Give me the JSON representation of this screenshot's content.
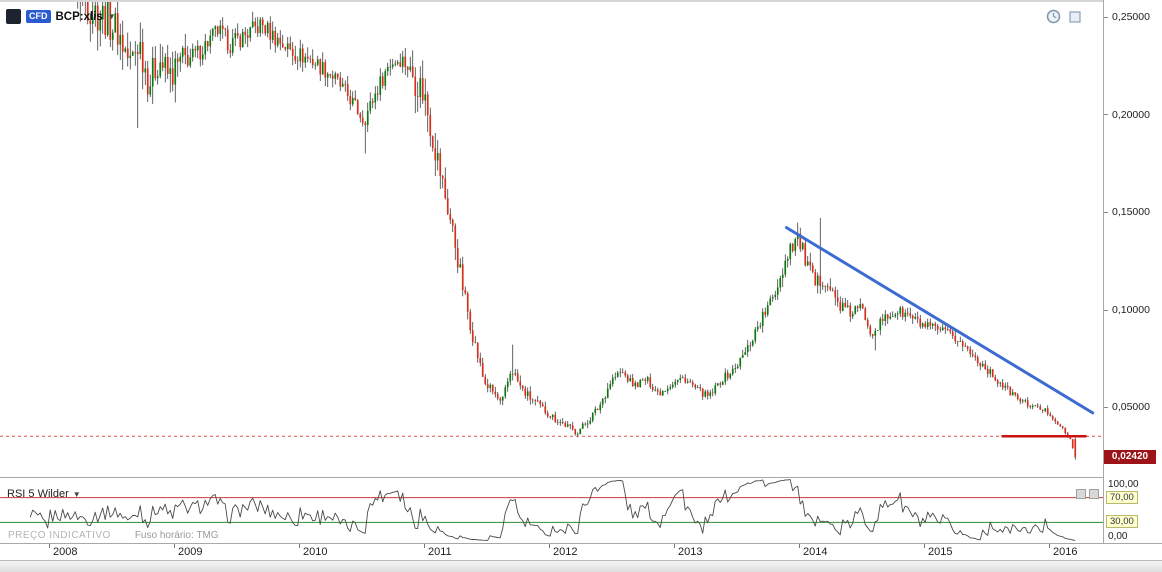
{
  "header": {
    "instrument_badge": "CFD",
    "symbol": "BCP:xlis",
    "dropdown_glyph": "▼"
  },
  "price_axis": {
    "labels": [
      "0,25000",
      "0,20000",
      "0,15000",
      "0,10000",
      "0,05000"
    ],
    "current_price_label": "0,02420"
  },
  "rsi_panel": {
    "label": "RSI 5 Wilder",
    "dropdown_glyph": "▼",
    "levels": [
      "100,00",
      "70,00",
      "30,00",
      "0,00"
    ]
  },
  "x_axis": {
    "years": [
      "2008",
      "2009",
      "2010",
      "2011",
      "2012",
      "2013",
      "2014",
      "2015",
      "2016"
    ]
  },
  "footer": {
    "notice": "PREÇO INDICATIVO",
    "timezone": "Fuso horário: TMG"
  },
  "chart_data": {
    "type": "candlestick",
    "symbol": "BCP:xlis",
    "x_unit": "decimal_year",
    "visible_x_range": [
      2007.75,
      2016.45
    ],
    "visible_price_range": [
      0.0146,
      0.2587
    ],
    "price_gridlines": [
      0.25,
      0.2,
      0.15,
      0.1,
      0.05
    ],
    "current_price": 0.0242,
    "bar_interval_years": 0.02,
    "up_color": "#0b7a0e",
    "down_color": "#d4301c",
    "wick_color": "#222222",
    "trendline": {
      "x1": 2013.9,
      "price1": 0.142,
      "x2": 2016.35,
      "price2": 0.047,
      "color": "#3c6bd2",
      "width": 3
    },
    "support_line": {
      "x1": 2015.62,
      "x2": 2016.3,
      "price": 0.035,
      "color": "#cc1111",
      "width": 2.5
    },
    "alert_line": {
      "price": 0.035,
      "color": "#e05545",
      "style": "dashed"
    },
    "anchors": [
      [
        2007.75,
        0.305
      ],
      [
        2007.85,
        0.3
      ],
      [
        2007.95,
        0.294
      ],
      [
        2008.05,
        0.288
      ],
      [
        2008.15,
        0.275
      ],
      [
        2008.25,
        0.262
      ],
      [
        2008.35,
        0.254
      ],
      [
        2008.45,
        0.25
      ],
      [
        2008.55,
        0.243
      ],
      [
        2008.65,
        0.226
      ],
      [
        2008.72,
        0.238
      ],
      [
        2008.8,
        0.216
      ],
      [
        2008.88,
        0.229
      ],
      [
        2008.96,
        0.219
      ],
      [
        2009.05,
        0.226
      ],
      [
        2009.2,
        0.232
      ],
      [
        2009.35,
        0.243
      ],
      [
        2009.45,
        0.236
      ],
      [
        2009.55,
        0.24
      ],
      [
        2009.7,
        0.246
      ],
      [
        2009.8,
        0.24
      ],
      [
        2009.95,
        0.232
      ],
      [
        2010.1,
        0.228
      ],
      [
        2010.25,
        0.221
      ],
      [
        2010.4,
        0.209
      ],
      [
        2010.52,
        0.197
      ],
      [
        2010.62,
        0.212
      ],
      [
        2010.72,
        0.226
      ],
      [
        2010.82,
        0.229
      ],
      [
        2010.92,
        0.22
      ],
      [
        2011.0,
        0.211
      ],
      [
        2011.08,
        0.186
      ],
      [
        2011.16,
        0.161
      ],
      [
        2011.24,
        0.137
      ],
      [
        2011.32,
        0.108
      ],
      [
        2011.4,
        0.084
      ],
      [
        2011.48,
        0.063
      ],
      [
        2011.56,
        0.057
      ],
      [
        2011.62,
        0.051
      ],
      [
        2011.7,
        0.07
      ],
      [
        2011.78,
        0.059
      ],
      [
        2011.86,
        0.054
      ],
      [
        2011.95,
        0.049
      ],
      [
        2012.05,
        0.044
      ],
      [
        2012.15,
        0.04
      ],
      [
        2012.22,
        0.037
      ],
      [
        2012.3,
        0.042
      ],
      [
        2012.4,
        0.05
      ],
      [
        2012.5,
        0.064
      ],
      [
        2012.58,
        0.068
      ],
      [
        2012.68,
        0.061
      ],
      [
        2012.78,
        0.064
      ],
      [
        2012.88,
        0.057
      ],
      [
        2012.98,
        0.062
      ],
      [
        2013.08,
        0.065
      ],
      [
        2013.18,
        0.059
      ],
      [
        2013.28,
        0.055
      ],
      [
        2013.38,
        0.064
      ],
      [
        2013.48,
        0.069
      ],
      [
        2013.58,
        0.079
      ],
      [
        2013.68,
        0.093
      ],
      [
        2013.78,
        0.104
      ],
      [
        2013.86,
        0.119
      ],
      [
        2013.93,
        0.133
      ],
      [
        2013.99,
        0.137
      ],
      [
        2014.06,
        0.124
      ],
      [
        2014.13,
        0.112
      ],
      [
        2014.2,
        0.117
      ],
      [
        2014.3,
        0.104
      ],
      [
        2014.4,
        0.098
      ],
      [
        2014.5,
        0.101
      ],
      [
        2014.58,
        0.088
      ],
      [
        2014.68,
        0.095
      ],
      [
        2014.78,
        0.099
      ],
      [
        2014.88,
        0.097
      ],
      [
        2014.98,
        0.092
      ],
      [
        2015.08,
        0.09
      ],
      [
        2015.18,
        0.088
      ],
      [
        2015.28,
        0.084
      ],
      [
        2015.38,
        0.077
      ],
      [
        2015.48,
        0.071
      ],
      [
        2015.58,
        0.064
      ],
      [
        2015.68,
        0.058
      ],
      [
        2015.78,
        0.053
      ],
      [
        2015.88,
        0.05
      ],
      [
        2015.98,
        0.048
      ],
      [
        2016.04,
        0.044
      ],
      [
        2016.09,
        0.04
      ],
      [
        2016.13,
        0.037
      ],
      [
        2016.17,
        0.033
      ],
      [
        2016.21,
        0.0242
      ]
    ],
    "vol_zones": [
      {
        "from": 2007.7,
        "to": 2009.1,
        "v": 0.05
      },
      {
        "from": 2009.1,
        "to": 2010.9,
        "v": 0.025
      },
      {
        "from": 2010.9,
        "to": 2012.5,
        "v": 0.055
      },
      {
        "from": 2012.5,
        "to": 2013.6,
        "v": 0.04
      },
      {
        "from": 2013.6,
        "to": 2014.45,
        "v": 0.045
      },
      {
        "from": 2014.45,
        "to": 2016.05,
        "v": 0.035
      },
      {
        "from": 2016.05,
        "to": 2016.3,
        "v": 0.03
      }
    ],
    "wick_events": [
      {
        "t": 2008.7,
        "low": 0.193
      },
      {
        "t": 2010.52,
        "low": 0.18
      },
      {
        "t": 2011.7,
        "high": 0.082
      },
      {
        "t": 2013.99,
        "high": 0.1445
      },
      {
        "t": 2014.17,
        "high": 0.147
      },
      {
        "t": 2014.6,
        "low": 0.079
      }
    ],
    "last_candle": {
      "open": 0.0335,
      "high": 0.0342,
      "low": 0.023,
      "close": 0.0242
    },
    "indicator": {
      "type": "rsi",
      "period": 5,
      "method": "Wilder",
      "upper_level": 70,
      "lower_level": 30,
      "upper_color": "#c83c3c",
      "lower_color": "#2f8f2f",
      "line_color": "#4a4a4a"
    }
  }
}
